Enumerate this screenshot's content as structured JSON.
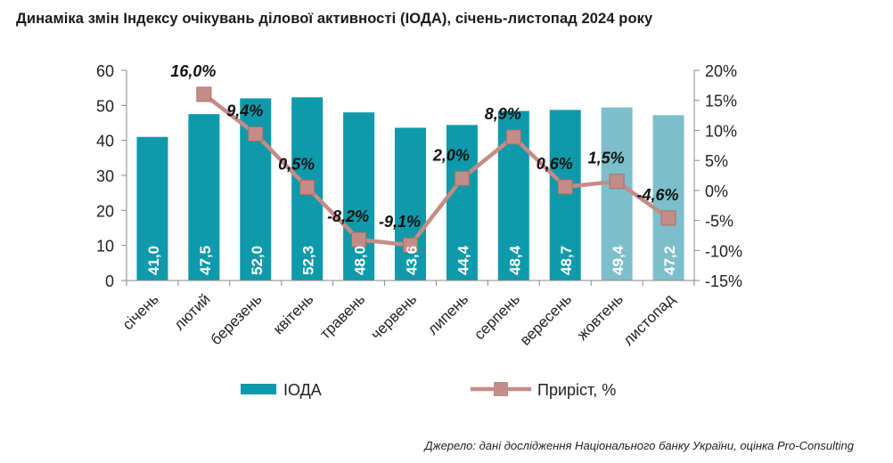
{
  "title": "Динаміка змін Індексу очікувань ділової активності (ІОДА), січень-листопад 2024 року",
  "source": "Джерело: дані дослідження Національного банку України, оцінка Pro-Consulting",
  "colors": {
    "bar_dark": "#0e9aab",
    "bar_light": "#7cbfcb",
    "line": "#c48c86",
    "marker": "#c48c86",
    "axis": "#888888"
  },
  "chart_data": {
    "type": "bar+line",
    "categories": [
      "січень",
      "лютий",
      "березень",
      "квітень",
      "травень",
      "червень",
      "липень",
      "серпень",
      "вересень",
      "жовтень",
      "листопад"
    ],
    "series": [
      {
        "name": "ІОДА",
        "type": "bar",
        "axis": "left",
        "values": [
          41.0,
          47.5,
          52.0,
          52.3,
          48.0,
          43.6,
          44.4,
          48.4,
          48.7,
          49.4,
          47.2
        ],
        "labels": [
          "41,0",
          "47,5",
          "52,0",
          "52,3",
          "48,0",
          "43,6",
          "44,4",
          "48,4",
          "48,7",
          "49,4",
          "47,2"
        ],
        "highlight_from_index": 9
      },
      {
        "name": "Приріст, %",
        "type": "line",
        "axis": "right",
        "values": [
          null,
          16.0,
          9.4,
          0.5,
          -8.2,
          -9.1,
          2.0,
          8.9,
          0.6,
          1.5,
          -4.6
        ],
        "labels": [
          null,
          "16,0%",
          "9,4%",
          "0,5%",
          "-8,2%",
          "-9,1%",
          "2,0%",
          "8,9%",
          "0,6%",
          "1,5%",
          "-4,6%"
        ]
      }
    ],
    "y_left": {
      "min": 0,
      "max": 60,
      "ticks": [
        0,
        10,
        20,
        30,
        40,
        50,
        60
      ]
    },
    "y_right": {
      "min": -15,
      "max": 20,
      "ticks": [
        -15,
        -10,
        -5,
        0,
        5,
        10,
        15,
        20
      ],
      "tick_labels": [
        "-15%",
        "-10%",
        "-5%",
        "0%",
        "5%",
        "10%",
        "15%",
        "20%"
      ]
    },
    "legend": [
      {
        "name": "ІОДА",
        "symbol": "bar"
      },
      {
        "name": "Приріст, %",
        "symbol": "line-marker"
      }
    ],
    "legend_position": "bottom",
    "grid": false
  }
}
